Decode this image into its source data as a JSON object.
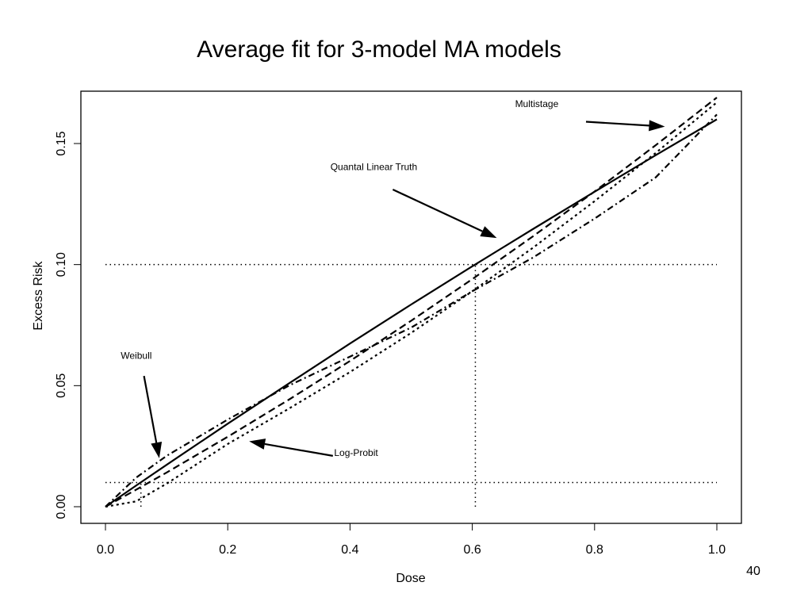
{
  "chart_data": {
    "type": "line",
    "title": "Average fit for 3-model MA models",
    "xlabel": "Dose",
    "ylabel": "Excess Risk",
    "xlim": [
      -0.04,
      1.04
    ],
    "ylim": [
      -0.007,
      0.172
    ],
    "grid": false,
    "x_ticks": [
      {
        "value": 0.0,
        "label": "0.0"
      },
      {
        "value": 0.2,
        "label": "0.2"
      },
      {
        "value": 0.4,
        "label": "0.4"
      },
      {
        "value": 0.6,
        "label": "0.6"
      },
      {
        "value": 0.8,
        "label": "0.8"
      },
      {
        "value": 1.0,
        "label": "1.0"
      }
    ],
    "y_ticks": [
      {
        "value": 0.0,
        "label": "0.00"
      },
      {
        "value": 0.05,
        "label": "0.05"
      },
      {
        "value": 0.1,
        "label": "0.10"
      },
      {
        "value": 0.15,
        "label": "0.15"
      }
    ],
    "x": [
      0,
      0.05,
      0.1,
      0.2,
      0.3,
      0.4,
      0.5,
      0.6,
      0.7,
      0.8,
      0.9,
      1.0
    ],
    "series": [
      {
        "name": "Quantal Linear Truth",
        "style": "solid",
        "values": [
          0,
          0.0087,
          0.0173,
          0.0343,
          0.0509,
          0.0674,
          0.0835,
          0.0993,
          0.1148,
          0.1301,
          0.1452,
          0.16
        ]
      },
      {
        "name": "Multistage",
        "style": "dashed",
        "values": [
          0,
          0.007,
          0.0141,
          0.0289,
          0.0442,
          0.0602,
          0.0768,
          0.094,
          0.1118,
          0.1302,
          0.1493,
          0.169
        ]
      },
      {
        "name": "Log-Probit",
        "style": "dotted",
        "values": [
          0,
          0.0022,
          0.0095,
          0.0259,
          0.0405,
          0.0556,
          0.0718,
          0.089,
          0.1071,
          0.1262,
          0.1461,
          0.167
        ]
      },
      {
        "name": "Weibull",
        "style": "dashdot",
        "values": [
          0,
          0.012,
          0.021,
          0.036,
          0.05,
          0.062,
          0.074,
          0.089,
          0.103,
          0.119,
          0.136,
          0.162
        ]
      }
    ],
    "reference_lines": [
      {
        "type": "horizontal",
        "y": 0.1,
        "from_x": 0.0,
        "to_x": 1.0
      },
      {
        "type": "horizontal",
        "y": 0.01,
        "from_x": 0.0,
        "to_x": 1.0
      },
      {
        "type": "vertical",
        "x": 0.605,
        "from_y": 0.0,
        "to_y": 0.1
      },
      {
        "type": "vertical",
        "x": 0.058,
        "from_y": 0.0,
        "to_y": 0.01
      }
    ],
    "annotations": [
      {
        "text": "Multistage",
        "label_x": 0.67,
        "label_y": 0.165,
        "arrow_from": [
          0.786,
          0.159
        ],
        "arrow_to": [
          0.915,
          0.157
        ]
      },
      {
        "text": "Quantal Linear Truth",
        "label_x": 0.368,
        "label_y": 0.139,
        "arrow_from": [
          0.47,
          0.131
        ],
        "arrow_to": [
          0.64,
          0.111
        ]
      },
      {
        "text": "Weibull",
        "label_x": 0.025,
        "label_y": 0.061,
        "arrow_from": [
          0.063,
          0.054
        ],
        "arrow_to": [
          0.088,
          0.02
        ]
      },
      {
        "text": "Log-Probit",
        "label_x": 0.374,
        "label_y": 0.021,
        "arrow_from": [
          0.372,
          0.021
        ],
        "arrow_to": [
          0.235,
          0.027
        ]
      }
    ]
  },
  "page_number": "40"
}
